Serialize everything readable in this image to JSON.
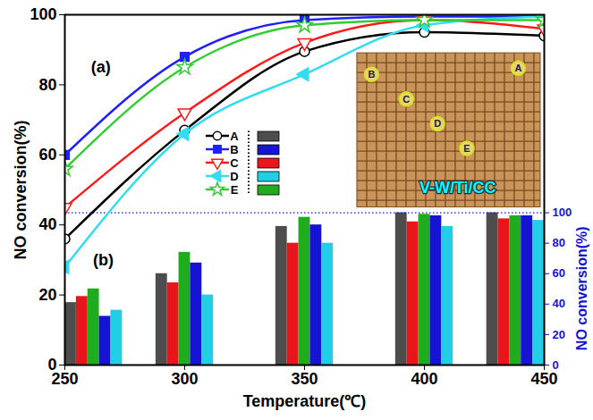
{
  "chart_data": {
    "type": "line",
    "x_label": "Temperature(℃)",
    "y_label": "NO conversion(%)",
    "y2_label": "NO conversion(%)",
    "x": [
      250,
      300,
      350,
      400,
      450
    ],
    "xlim": [
      250,
      450
    ],
    "xticks": [
      250,
      300,
      350,
      400,
      450
    ],
    "ylim": [
      0,
      100
    ],
    "yticks": [
      0,
      20,
      40,
      60,
      80,
      100
    ],
    "y2lim": [
      0,
      230
    ],
    "y2ticks": [
      0,
      20,
      40,
      60,
      80,
      100
    ],
    "legend": "center",
    "series": [
      {
        "name": "A",
        "type": "line",
        "color": "#000000",
        "marker": "circle-open",
        "values": [
          36,
          67,
          89.5,
          95,
          94
        ]
      },
      {
        "name": "B",
        "type": "line",
        "color": "#1f1fff",
        "marker": "square",
        "values": [
          60,
          88,
          98.5,
          99.5,
          99.5
        ]
      },
      {
        "name": "C",
        "type": "line",
        "color": "#ff1a1a",
        "marker": "triangle-down-open",
        "values": [
          45,
          72,
          92,
          98.5,
          96
        ]
      },
      {
        "name": "D",
        "type": "line",
        "color": "#33ddee",
        "marker": "triangle-left",
        "values": [
          28,
          66,
          83,
          97,
          99.5
        ]
      },
      {
        "name": "E",
        "type": "line",
        "color": "#33cc33",
        "marker": "star-open",
        "values": [
          56,
          85,
          97,
          98.5,
          98.5
        ]
      },
      {
        "name": "A",
        "type": "bar",
        "axis": "y2",
        "color": "#4d4d4d",
        "values": [
          41,
          60,
          91,
          100,
          100
        ]
      },
      {
        "name": "C",
        "type": "bar",
        "axis": "y2",
        "color": "#e8161b",
        "values": [
          45,
          54,
          80,
          94,
          96
        ]
      },
      {
        "name": "E",
        "type": "bar",
        "axis": "y2",
        "color": "#1fad1f",
        "values": [
          50,
          74,
          97,
          99,
          98
        ]
      },
      {
        "name": "B",
        "type": "bar",
        "axis": "y2",
        "color": "#1414d2",
        "values": [
          32,
          67,
          92,
          98,
          98
        ]
      },
      {
        "name": "D",
        "type": "bar",
        "axis": "y2",
        "color": "#22cde6",
        "values": [
          36,
          46,
          80,
          91,
          95
        ]
      }
    ],
    "annotations": [
      {
        "text": "(a)",
        "x": 265,
        "y": 85
      },
      {
        "text": "(b)",
        "x": 266,
        "y": 30
      }
    ],
    "inset": {
      "title": "V-W/Ti/CC",
      "labels": [
        "A",
        "B",
        "C",
        "D",
        "E"
      ]
    }
  }
}
